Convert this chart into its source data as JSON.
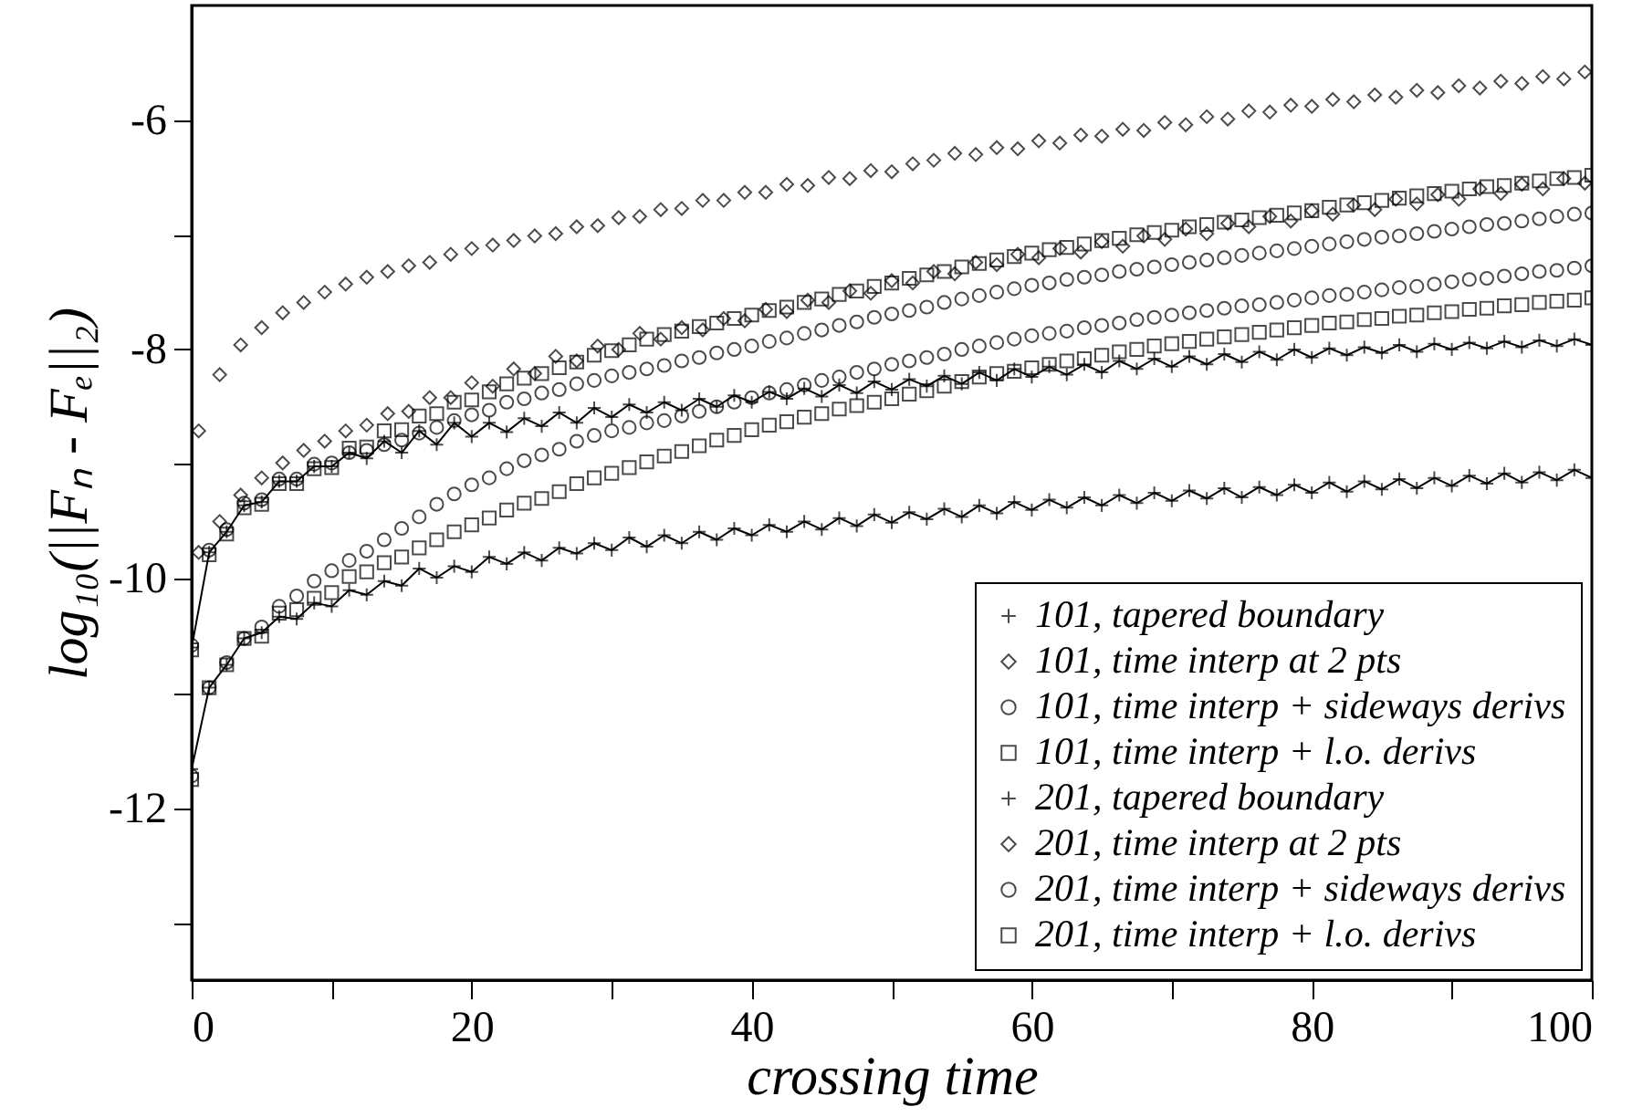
{
  "chart_data": {
    "type": "scatter",
    "xlabel": "crossing time",
    "ylabel": "log₁₀(||Fₙ - Fₑ||₂)",
    "xlim": [
      0,
      100
    ],
    "ylim": [
      -13.5,
      -5
    ],
    "xticks": [
      0,
      {
        "value": 10,
        "label": null
      },
      20,
      {
        "value": 30,
        "label": null
      },
      40,
      {
        "value": 50,
        "label": null
      },
      60,
      {
        "value": 70,
        "label": null
      },
      80,
      {
        "value": 90,
        "label": null
      },
      100
    ],
    "yticks": [
      {
        "value": -13,
        "label": null
      },
      -12,
      {
        "value": -11,
        "label": null
      },
      -10,
      {
        "value": -9,
        "label": null
      },
      -8,
      {
        "value": -7,
        "label": null
      },
      -6
    ],
    "grid": false,
    "legend": "bottom right",
    "x": [
      0,
      1.25,
      2.5,
      3.75,
      5,
      6.25,
      7.5,
      8.75,
      10,
      11.25,
      12.5,
      13.75,
      15,
      16.25,
      17.5,
      18.75,
      20,
      21.25,
      22.5,
      23.75,
      25,
      26.25,
      27.5,
      28.75,
      30,
      31.25,
      32.5,
      33.75,
      35,
      36.25,
      37.5,
      38.75,
      40,
      41.25,
      42.5,
      43.75,
      45,
      46.25,
      47.5,
      48.75,
      50,
      51.25,
      52.5,
      53.75,
      55,
      56.25,
      57.5,
      58.75,
      60,
      61.25,
      62.5,
      63.75,
      65,
      66.25,
      67.5,
      68.75,
      70,
      71.25,
      72.5,
      73.75,
      75,
      76.25,
      77.5,
      78.75,
      80,
      81.25,
      82.5,
      83.75,
      85,
      86.25,
      87.5,
      88.75,
      90,
      91.25,
      92.5,
      93.75,
      95,
      96.25,
      97.5,
      98.75,
      100
    ],
    "series": [
      {
        "name": "101, tapered boundary",
        "type": "line",
        "marker": "cross",
        "line_style": "solid",
        "color": "#000000",
        "values": [
          -10.6,
          -9.77,
          -9.59,
          -9.36,
          -9.33,
          -9.15,
          -9.15,
          -9.02,
          -9.02,
          -8.9,
          -8.95,
          -8.8,
          -8.9,
          -8.71,
          -8.83,
          -8.64,
          -8.76,
          -8.64,
          -8.72,
          -8.6,
          -8.67,
          -8.55,
          -8.64,
          -8.51,
          -8.59,
          -8.48,
          -8.55,
          -8.46,
          -8.53,
          -8.43,
          -8.5,
          -8.4,
          -8.46,
          -8.37,
          -8.43,
          -8.34,
          -8.41,
          -8.31,
          -8.38,
          -8.28,
          -8.35,
          -8.26,
          -8.32,
          -8.23,
          -8.3,
          -8.2,
          -8.27,
          -8.17,
          -8.24,
          -8.15,
          -8.22,
          -8.13,
          -8.2,
          -8.1,
          -8.17,
          -8.08,
          -8.15,
          -8.06,
          -8.13,
          -8.04,
          -8.11,
          -8.02,
          -8.09,
          -8.0,
          -8.07,
          -7.99,
          -8.05,
          -7.98,
          -8.03,
          -7.96,
          -8.02,
          -7.95,
          -8.0,
          -7.94,
          -7.99,
          -7.93,
          -7.98,
          -7.92,
          -7.97,
          -7.91,
          -7.96
        ]
      },
      {
        "name": "101, time interp at 2 pts",
        "type": "scatter",
        "marker": "diamond",
        "color": "#000000",
        "x": [
          0.5,
          2,
          3.5,
          5,
          6.5,
          8,
          9.5,
          11,
          12.5,
          14,
          15.5,
          17,
          18.5,
          20,
          21.5,
          23,
          24.5,
          26,
          27.5,
          29,
          30.5,
          32,
          33.5,
          35,
          36.5,
          38,
          39.5,
          41,
          42.5,
          44,
          45.5,
          47,
          48.5,
          50,
          51.5,
          53,
          54.5,
          56,
          57.5,
          59,
          60.5,
          62,
          63.5,
          65,
          66.5,
          68,
          69.5,
          71,
          72.5,
          74,
          75.5,
          77,
          78.5,
          80,
          81.5,
          83,
          84.5,
          86,
          87.5,
          89,
          90.5,
          92,
          93.5,
          95,
          96.5,
          98,
          99.5
        ],
        "values": [
          -8.71,
          -8.22,
          -7.96,
          -7.81,
          -7.68,
          -7.59,
          -7.5,
          -7.43,
          -7.37,
          -7.32,
          -7.27,
          -7.24,
          -7.17,
          -7.12,
          -7.09,
          -7.05,
          -7.01,
          -6.99,
          -6.93,
          -6.92,
          -6.85,
          -6.84,
          -6.78,
          -6.77,
          -6.7,
          -6.7,
          -6.63,
          -6.63,
          -6.56,
          -6.57,
          -6.5,
          -6.51,
          -6.44,
          -6.45,
          -6.38,
          -6.35,
          -6.29,
          -6.3,
          -6.24,
          -6.25,
          -6.18,
          -6.2,
          -6.13,
          -6.14,
          -6.08,
          -6.09,
          -6.02,
          -6.04,
          -5.97,
          -5.99,
          -5.92,
          -5.93,
          -5.87,
          -5.88,
          -5.82,
          -5.84,
          -5.78,
          -5.8,
          -5.74,
          -5.76,
          -5.7,
          -5.72,
          -5.66,
          -5.68,
          -5.62,
          -5.64,
          -5.58
        ]
      },
      {
        "name": "101, time interp + sideways derivs",
        "type": "scatter",
        "marker": "circle",
        "color": "#000000",
        "values": [
          -10.58,
          -9.75,
          -9.57,
          -9.34,
          -9.31,
          -9.13,
          -9.13,
          -9.0,
          -8.99,
          -8.9,
          -8.88,
          -8.83,
          -8.79,
          -8.73,
          -8.68,
          -8.62,
          -8.57,
          -8.53,
          -8.46,
          -8.43,
          -8.38,
          -8.35,
          -8.3,
          -8.27,
          -8.23,
          -8.2,
          -8.17,
          -8.14,
          -8.1,
          -8.07,
          -8.03,
          -8.0,
          -7.97,
          -7.93,
          -7.9,
          -7.86,
          -7.83,
          -7.79,
          -7.76,
          -7.72,
          -7.69,
          -7.66,
          -7.63,
          -7.59,
          -7.56,
          -7.53,
          -7.5,
          -7.47,
          -7.44,
          -7.42,
          -7.39,
          -7.37,
          -7.35,
          -7.32,
          -7.3,
          -7.28,
          -7.26,
          -7.24,
          -7.22,
          -7.2,
          -7.18,
          -7.16,
          -7.14,
          -7.12,
          -7.1,
          -7.08,
          -7.06,
          -7.04,
          -7.02,
          -7.01,
          -6.99,
          -6.97,
          -6.95,
          -6.93,
          -6.91,
          -6.9,
          -6.88,
          -6.86,
          -6.84,
          -6.82,
          -6.81
        ]
      },
      {
        "name": "101, time interp + l.o. derivs",
        "type": "scatter",
        "marker": "square",
        "color": "#000000",
        "values": [
          -10.62,
          -9.79,
          -9.61,
          -9.38,
          -9.35,
          -9.17,
          -9.17,
          -9.04,
          -9.03,
          -8.86,
          -8.85,
          -8.71,
          -8.7,
          -8.58,
          -8.56,
          -8.46,
          -8.44,
          -8.37,
          -8.3,
          -8.25,
          -8.21,
          -8.16,
          -8.11,
          -8.05,
          -8.01,
          -7.96,
          -7.91,
          -7.87,
          -7.84,
          -7.8,
          -7.77,
          -7.73,
          -7.7,
          -7.66,
          -7.63,
          -7.59,
          -7.56,
          -7.52,
          -7.49,
          -7.45,
          -7.42,
          -7.38,
          -7.35,
          -7.32,
          -7.28,
          -7.25,
          -7.22,
          -7.19,
          -7.16,
          -7.13,
          -7.11,
          -7.08,
          -7.05,
          -7.03,
          -7.0,
          -6.98,
          -6.96,
          -6.93,
          -6.91,
          -6.89,
          -6.87,
          -6.85,
          -6.83,
          -6.81,
          -6.79,
          -6.76,
          -6.74,
          -6.72,
          -6.7,
          -6.68,
          -6.66,
          -6.64,
          -6.62,
          -6.6,
          -6.58,
          -6.57,
          -6.55,
          -6.53,
          -6.51,
          -6.5,
          -6.48
        ]
      },
      {
        "name": "201, tapered boundary",
        "type": "line",
        "marker": "cross",
        "line_style": "solid",
        "color": "#000000",
        "values": [
          -11.66,
          -10.95,
          -10.75,
          -10.52,
          -10.47,
          -10.33,
          -10.35,
          -10.21,
          -10.24,
          -10.1,
          -10.14,
          -10.02,
          -10.06,
          -9.91,
          -9.99,
          -9.89,
          -9.94,
          -9.81,
          -9.87,
          -9.77,
          -9.84,
          -9.73,
          -9.78,
          -9.69,
          -9.75,
          -9.64,
          -9.72,
          -9.62,
          -9.69,
          -9.59,
          -9.66,
          -9.56,
          -9.62,
          -9.53,
          -9.59,
          -9.5,
          -9.57,
          -9.47,
          -9.54,
          -9.44,
          -9.51,
          -9.42,
          -9.48,
          -9.39,
          -9.46,
          -9.36,
          -9.43,
          -9.33,
          -9.4,
          -9.31,
          -9.38,
          -9.29,
          -9.36,
          -9.27,
          -9.34,
          -9.25,
          -9.32,
          -9.23,
          -9.3,
          -9.21,
          -9.29,
          -9.2,
          -9.27,
          -9.18,
          -9.25,
          -9.16,
          -9.24,
          -9.15,
          -9.22,
          -9.13,
          -9.21,
          -9.12,
          -9.19,
          -9.1,
          -9.17,
          -9.08,
          -9.16,
          -9.07,
          -9.14,
          -9.05,
          -9.12
        ]
      },
      {
        "name": "201, time interp at 2 pts",
        "type": "scatter",
        "marker": "diamond",
        "color": "#000000",
        "x": [
          0.5,
          2,
          3.5,
          5,
          6.5,
          8,
          9.5,
          11,
          12.5,
          14,
          15.5,
          17,
          18.5,
          20,
          21.5,
          23,
          24.5,
          26,
          27.5,
          29,
          30.5,
          32,
          33.5,
          35,
          36.5,
          38,
          39.5,
          41,
          42.5,
          44,
          45.5,
          47,
          48.5,
          50,
          51.5,
          53,
          54.5,
          56,
          57.5,
          59,
          60.5,
          62,
          63.5,
          65,
          66.5,
          68,
          69.5,
          71,
          72.5,
          74,
          75.5,
          77,
          78.5,
          80,
          81.5,
          83,
          84.5,
          86,
          87.5,
          89,
          90.5,
          92,
          93.5,
          95,
          96.5,
          98,
          99.5
        ],
        "values": [
          -9.77,
          -9.5,
          -9.27,
          -9.12,
          -8.99,
          -8.88,
          -8.8,
          -8.71,
          -8.66,
          -8.56,
          -8.54,
          -8.42,
          -8.42,
          -8.29,
          -8.32,
          -8.17,
          -8.21,
          -8.06,
          -8.1,
          -7.97,
          -8.0,
          -7.86,
          -7.91,
          -7.81,
          -7.83,
          -7.73,
          -7.75,
          -7.65,
          -7.67,
          -7.57,
          -7.59,
          -7.49,
          -7.51,
          -7.4,
          -7.42,
          -7.32,
          -7.34,
          -7.24,
          -7.26,
          -7.17,
          -7.2,
          -7.12,
          -7.15,
          -7.06,
          -7.1,
          -7.01,
          -7.04,
          -6.95,
          -6.99,
          -6.9,
          -6.93,
          -6.84,
          -6.88,
          -6.79,
          -6.82,
          -6.74,
          -6.78,
          -6.69,
          -6.73,
          -6.65,
          -6.69,
          -6.6,
          -6.64,
          -6.56,
          -6.6,
          -6.51,
          -6.55
        ]
      },
      {
        "name": "201, time interp + sideways derivs",
        "type": "scatter",
        "marker": "circle",
        "color": "#000000",
        "values": [
          -11.72,
          -10.95,
          -10.73,
          -10.52,
          -10.42,
          -10.24,
          -10.15,
          -10.02,
          -9.93,
          -9.84,
          -9.76,
          -9.66,
          -9.56,
          -9.46,
          -9.35,
          -9.26,
          -9.18,
          -9.12,
          -9.04,
          -8.97,
          -8.92,
          -8.87,
          -8.8,
          -8.75,
          -8.71,
          -8.68,
          -8.64,
          -8.62,
          -8.58,
          -8.54,
          -8.5,
          -8.46,
          -8.42,
          -8.38,
          -8.35,
          -8.31,
          -8.27,
          -8.24,
          -8.2,
          -8.17,
          -8.13,
          -8.1,
          -8.07,
          -8.04,
          -8.0,
          -7.97,
          -7.94,
          -7.91,
          -7.88,
          -7.86,
          -7.84,
          -7.81,
          -7.79,
          -7.77,
          -7.74,
          -7.72,
          -7.7,
          -7.68,
          -7.66,
          -7.64,
          -7.62,
          -7.61,
          -7.59,
          -7.57,
          -7.55,
          -7.53,
          -7.52,
          -7.5,
          -7.48,
          -7.46,
          -7.45,
          -7.43,
          -7.41,
          -7.39,
          -7.38,
          -7.36,
          -7.34,
          -7.32,
          -7.31,
          -7.29,
          -7.27
        ]
      },
      {
        "name": "201, time interp + l.o. derivs",
        "type": "scatter",
        "marker": "square",
        "color": "#000000",
        "values": [
          -11.75,
          -10.95,
          -10.75,
          -10.52,
          -10.5,
          -10.3,
          -10.27,
          -10.17,
          -10.12,
          -9.98,
          -9.94,
          -9.86,
          -9.81,
          -9.73,
          -9.66,
          -9.59,
          -9.53,
          -9.47,
          -9.4,
          -9.34,
          -9.3,
          -9.24,
          -9.17,
          -9.12,
          -9.08,
          -9.03,
          -8.98,
          -8.93,
          -8.89,
          -8.84,
          -8.79,
          -8.75,
          -8.7,
          -8.66,
          -8.63,
          -8.59,
          -8.56,
          -8.52,
          -8.49,
          -8.46,
          -8.43,
          -8.39,
          -8.36,
          -8.32,
          -8.28,
          -8.24,
          -8.21,
          -8.19,
          -8.16,
          -8.13,
          -8.1,
          -8.08,
          -8.05,
          -8.02,
          -8.0,
          -7.97,
          -7.95,
          -7.93,
          -7.91,
          -7.89,
          -7.87,
          -7.85,
          -7.83,
          -7.81,
          -7.79,
          -7.77,
          -7.76,
          -7.74,
          -7.73,
          -7.71,
          -7.7,
          -7.68,
          -7.67,
          -7.65,
          -7.64,
          -7.62,
          -7.61,
          -7.59,
          -7.58,
          -7.57,
          -7.55
        ]
      }
    ]
  }
}
